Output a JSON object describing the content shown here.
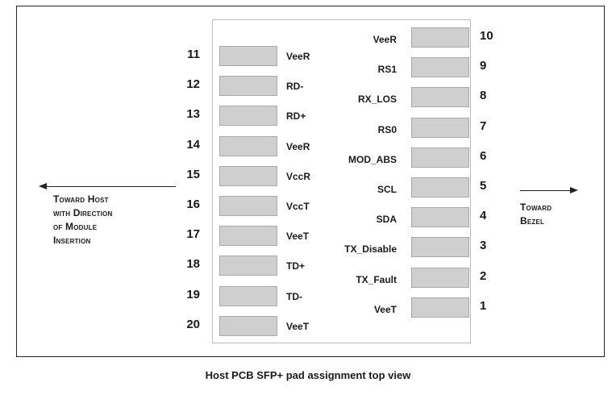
{
  "caption": "Host PCB SFP+ pad assignment top view",
  "left_label": [
    "Toward Host",
    "with Direction",
    "of Module",
    "Insertion"
  ],
  "right_label": [
    "Toward",
    "Bezel"
  ],
  "left_pins": [
    {
      "num": "11",
      "signal": "VeeR"
    },
    {
      "num": "12",
      "signal": "RD-"
    },
    {
      "num": "13",
      "signal": "RD+"
    },
    {
      "num": "14",
      "signal": "VeeR"
    },
    {
      "num": "15",
      "signal": "VccR"
    },
    {
      "num": "16",
      "signal": "VccT"
    },
    {
      "num": "17",
      "signal": "VeeT"
    },
    {
      "num": "18",
      "signal": "TD+"
    },
    {
      "num": "19",
      "signal": "TD-"
    },
    {
      "num": "20",
      "signal": "VeeT"
    }
  ],
  "right_pins": [
    {
      "num": "10",
      "signal": "VeeR"
    },
    {
      "num": "9",
      "signal": "RS1"
    },
    {
      "num": "8",
      "signal": "RX_LOS"
    },
    {
      "num": "7",
      "signal": "RS0"
    },
    {
      "num": "6",
      "signal": "MOD_ABS"
    },
    {
      "num": "5",
      "signal": "SCL"
    },
    {
      "num": "4",
      "signal": "SDA"
    },
    {
      "num": "3",
      "signal": "TX_Disable"
    },
    {
      "num": "2",
      "signal": "TX_Fault"
    },
    {
      "num": "1",
      "signal": "VeeT"
    }
  ]
}
